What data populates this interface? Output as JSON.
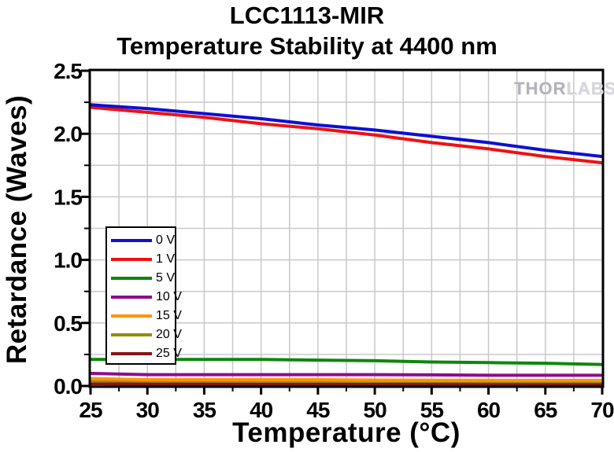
{
  "title": {
    "line1": "LCC1113-MIR",
    "line2": "Temperature Stability at 4400 nm"
  },
  "watermark": {
    "part1": "THOR",
    "part2": "LABS"
  },
  "chart_data": {
    "type": "line",
    "title": "LCC1113-MIR Temperature Stability at 4400 nm",
    "xlabel": "Temperature (°C)",
    "ylabel": "Retardance (Waves)",
    "xlim": [
      25,
      70
    ],
    "ylim": [
      0,
      2.5
    ],
    "x_tick_labels": [
      "25",
      "30",
      "35",
      "40",
      "45",
      "50",
      "55",
      "60",
      "65",
      "70"
    ],
    "y_tick_labels": [
      "0.0",
      "0.5",
      "1.0",
      "1.5",
      "2.0",
      "2.5"
    ],
    "x_minor_step": 2.5,
    "y_minor_step": 0.25,
    "grid": "on (minor, light gray)",
    "legend_position": "left-middle inside plot",
    "x": [
      25,
      30,
      35,
      40,
      45,
      50,
      55,
      60,
      65,
      70
    ],
    "series": [
      {
        "name": "0 V",
        "color": "#0f0fd4",
        "values": [
          2.23,
          2.2,
          2.16,
          2.12,
          2.07,
          2.03,
          1.98,
          1.93,
          1.87,
          1.82
        ]
      },
      {
        "name": "1 V",
        "color": "#ee1111",
        "values": [
          2.21,
          2.17,
          2.13,
          2.08,
          2.04,
          1.99,
          1.93,
          1.88,
          1.82,
          1.77
        ]
      },
      {
        "name": "5 V",
        "color": "#0d870d",
        "values": [
          0.21,
          0.21,
          0.21,
          0.21,
          0.205,
          0.2,
          0.19,
          0.185,
          0.18,
          0.17
        ]
      },
      {
        "name": "10 V",
        "color": "#8d0d8d",
        "values": [
          0.1,
          0.09,
          0.09,
          0.09,
          0.09,
          0.09,
          0.088,
          0.085,
          0.085,
          0.085
        ]
      },
      {
        "name": "15 V",
        "color": "#ff9307",
        "values": [
          0.058,
          0.05,
          0.05,
          0.05,
          0.05,
          0.047,
          0.045,
          0.045,
          0.044,
          0.044
        ]
      },
      {
        "name": "20 V",
        "color": "#8f8f0a",
        "values": [
          0.042,
          0.04,
          0.04,
          0.039,
          0.038,
          0.038,
          0.037,
          0.037,
          0.036,
          0.036
        ]
      },
      {
        "name": "25 V",
        "color": "#8b1212",
        "values": [
          0.016,
          0.015,
          0.015,
          0.014,
          0.014,
          0.013,
          0.013,
          0.012,
          0.012,
          0.012
        ]
      }
    ],
    "colors": {
      "grid": "#c9c9c9",
      "axis": "#000000",
      "background": "#ffffff"
    }
  }
}
